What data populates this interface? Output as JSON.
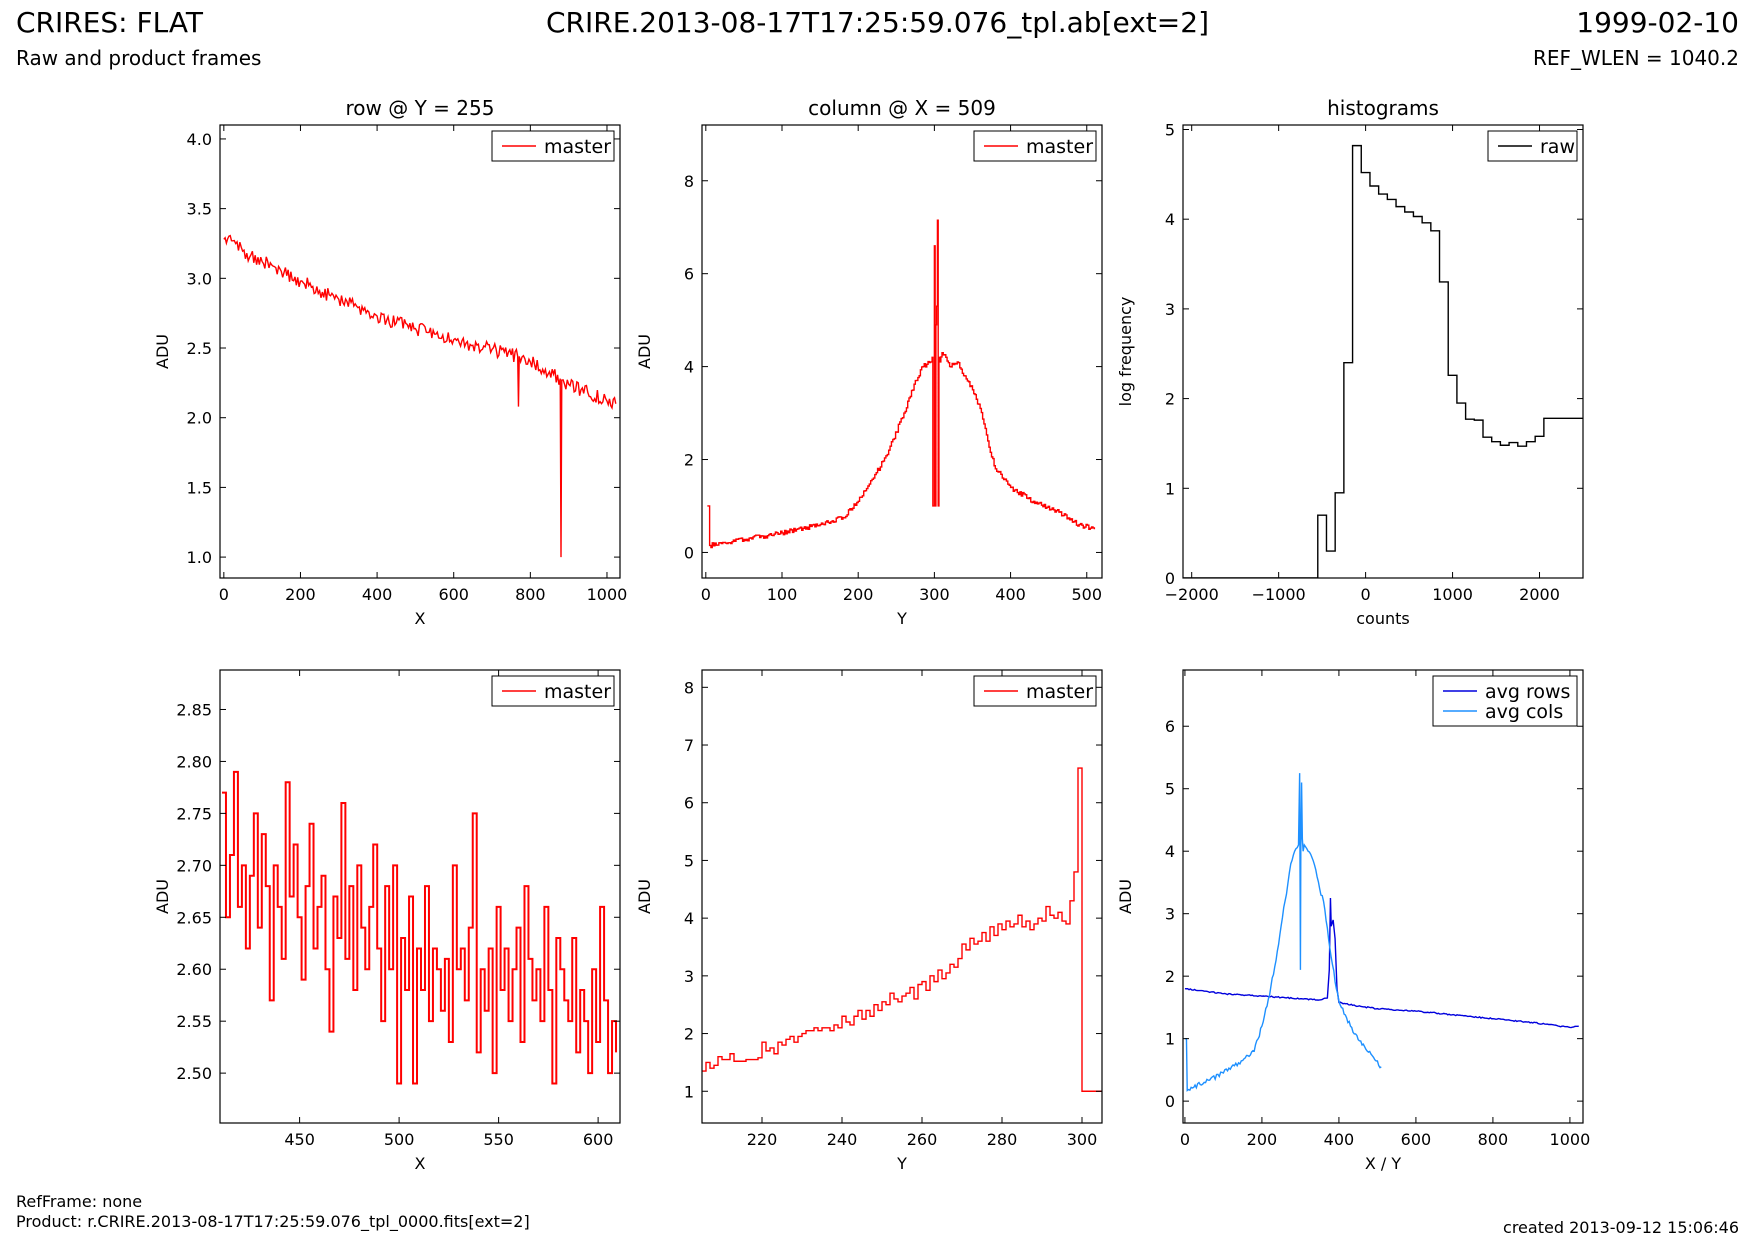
{
  "header": {
    "title_left": "CRIRES: FLAT",
    "subtitle_left": "Raw and product frames",
    "title_center": "CRIRE.2013-08-17T17:25:59.076_tpl.ab[ext=2]",
    "title_right": "1999-02-10",
    "subtitle_right": "REF_WLEN = 1040.2"
  },
  "footer": {
    "refframe": "RefFrame: none",
    "product": "Product: r.CRIRE.2013-08-17T17:25:59.076_tpl_0000.fits[ext=2]",
    "created": "created 2013-09-12 15:06:46"
  },
  "colors": {
    "master": "#ff0000",
    "raw": "#000000",
    "avg_rows": "#0000dd",
    "avg_cols": "#1e90ff"
  },
  "chart_data": [
    {
      "type": "line",
      "title": "row @ Y = 255",
      "xlabel": "X",
      "ylabel": "ADU",
      "xlim": [
        -10,
        1034
      ],
      "ylim": [
        0.85,
        4.1
      ],
      "xticks": [
        0,
        200,
        400,
        600,
        800,
        1000
      ],
      "yticks": [
        1.0,
        1.5,
        2.0,
        2.5,
        3.0,
        3.5,
        4.0
      ],
      "tick_decimals": 1,
      "legend": "top-right",
      "series": [
        {
          "name": "master",
          "color": "#ff0000",
          "step": false,
          "x": [
            0,
            20,
            60,
            100,
            150,
            200,
            250,
            300,
            350,
            400,
            450,
            500,
            550,
            600,
            650,
            700,
            750,
            767,
            769,
            771,
            800,
            850,
            878,
            880,
            882,
            900,
            950,
            1000,
            1023
          ],
          "y": [
            3.28,
            3.27,
            3.18,
            3.12,
            3.05,
            2.98,
            2.91,
            2.85,
            2.79,
            2.73,
            2.68,
            2.64,
            2.6,
            2.56,
            2.52,
            2.49,
            2.45,
            2.44,
            2.08,
            2.44,
            2.4,
            2.33,
            2.28,
            1.0,
            2.27,
            2.24,
            2.18,
            2.12,
            2.1
          ],
          "noise": 0.05
        }
      ]
    },
    {
      "type": "line",
      "title": "column @ X = 509",
      "xlabel": "Y",
      "ylabel": "ADU",
      "xlim": [
        -5,
        520
      ],
      "ylim": [
        -0.55,
        9.2
      ],
      "xticks": [
        0,
        100,
        200,
        300,
        400,
        500
      ],
      "yticks": [
        0,
        2,
        4,
        6,
        8
      ],
      "tick_decimals": 0,
      "legend": "top-right",
      "series": [
        {
          "name": "master",
          "color": "#ff0000",
          "step": true,
          "x": [
            2,
            4,
            5,
            50,
            100,
            150,
            180,
            200,
            220,
            240,
            260,
            275,
            285,
            290,
            295,
            297,
            298,
            300,
            301,
            302,
            303,
            304,
            305,
            306,
            307,
            310,
            315,
            320,
            330,
            340,
            350,
            360,
            370,
            380,
            400,
            430,
            460,
            490,
            510
          ],
          "y": [
            1.0,
            1.0,
            0.15,
            0.28,
            0.42,
            0.6,
            0.75,
            1.1,
            1.6,
            2.2,
            3.0,
            3.7,
            4.0,
            4.05,
            4.1,
            4.2,
            1.0,
            6.6,
            1.0,
            4.9,
            5.3,
            7.15,
            1.0,
            4.2,
            4.1,
            4.3,
            4.2,
            4.0,
            4.1,
            3.8,
            3.5,
            3.1,
            2.4,
            1.8,
            1.4,
            1.1,
            0.9,
            0.6,
            0.5
          ],
          "noise": 0.05
        }
      ]
    },
    {
      "type": "line",
      "title": "histograms",
      "xlabel": "counts",
      "ylabel": "log frequency",
      "xlim": [
        -2100,
        2500
      ],
      "ylim": [
        0,
        5.05
      ],
      "xticks": [
        -2000,
        -1000,
        0,
        1000,
        2000
      ],
      "yticks": [
        0,
        1,
        2,
        3,
        4,
        5
      ],
      "tick_decimals": 0,
      "legend": "top-right",
      "series": [
        {
          "name": "raw",
          "color": "#000000",
          "step": true,
          "x": [
            -2100,
            -550,
            -550,
            -450,
            -350,
            -250,
            -150,
            -50,
            50,
            150,
            250,
            350,
            450,
            550,
            650,
            750,
            850,
            950,
            1050,
            1150,
            1250,
            1350,
            1450,
            1550,
            1650,
            1750,
            1850,
            1950,
            2050,
            2150,
            2250,
            2350,
            2450,
            2500
          ],
          "y": [
            0,
            0,
            0.7,
            0.3,
            0.95,
            2.4,
            4.82,
            4.52,
            4.37,
            4.28,
            4.22,
            4.14,
            4.08,
            4.03,
            3.96,
            3.87,
            3.3,
            2.26,
            1.95,
            1.77,
            1.76,
            1.57,
            1.52,
            1.48,
            1.51,
            1.47,
            1.52,
            1.58,
            1.78,
            1.78,
            1.78,
            1.78,
            1.78,
            1.78
          ],
          "noise": 0
        }
      ]
    },
    {
      "type": "line",
      "title": "",
      "xlabel": "X",
      "ylabel": "ADU",
      "xlim": [
        410,
        611
      ],
      "ylim": [
        2.452,
        2.888
      ],
      "xticks": [
        450,
        500,
        550,
        600
      ],
      "yticks": [
        2.5,
        2.55,
        2.6,
        2.65,
        2.7,
        2.75,
        2.8,
        2.85
      ],
      "tick_decimals": 2,
      "legend": "top-right",
      "series": [
        {
          "name": "master",
          "color": "#ff0000",
          "step": true,
          "x": [
            411,
            413,
            415,
            417,
            419,
            421,
            423,
            425,
            427,
            429,
            431,
            433,
            435,
            437,
            439,
            441,
            443,
            445,
            447,
            449,
            451,
            453,
            455,
            457,
            459,
            461,
            463,
            465,
            467,
            469,
            471,
            473,
            475,
            477,
            479,
            481,
            483,
            485,
            487,
            489,
            491,
            493,
            495,
            497,
            499,
            501,
            503,
            505,
            507,
            509,
            511,
            513,
            515,
            517,
            519,
            521,
            523,
            525,
            527,
            529,
            531,
            533,
            535,
            537,
            539,
            541,
            543,
            545,
            547,
            549,
            551,
            553,
            555,
            557,
            559,
            561,
            563,
            565,
            567,
            569,
            571,
            573,
            575,
            577,
            579,
            581,
            583,
            585,
            587,
            589,
            591,
            593,
            595,
            597,
            599,
            601,
            603,
            605,
            607,
            609
          ],
          "y": [
            2.77,
            2.65,
            2.71,
            2.79,
            2.66,
            2.7,
            2.62,
            2.69,
            2.75,
            2.64,
            2.73,
            2.68,
            2.57,
            2.7,
            2.66,
            2.61,
            2.78,
            2.67,
            2.72,
            2.65,
            2.59,
            2.68,
            2.74,
            2.62,
            2.66,
            2.69,
            2.6,
            2.54,
            2.67,
            2.63,
            2.76,
            2.61,
            2.68,
            2.58,
            2.7,
            2.64,
            2.6,
            2.66,
            2.72,
            2.62,
            2.55,
            2.68,
            2.6,
            2.7,
            2.49,
            2.63,
            2.58,
            2.67,
            2.49,
            2.62,
            2.58,
            2.68,
            2.55,
            2.62,
            2.6,
            2.56,
            2.61,
            2.53,
            2.7,
            2.6,
            2.62,
            2.57,
            2.64,
            2.75,
            2.52,
            2.6,
            2.56,
            2.62,
            2.5,
            2.66,
            2.58,
            2.62,
            2.55,
            2.6,
            2.64,
            2.53,
            2.68,
            2.61,
            2.57,
            2.6,
            2.55,
            2.66,
            2.58,
            2.49,
            2.63,
            2.6,
            2.57,
            2.55,
            2.63,
            2.52,
            2.58,
            2.55,
            2.5,
            2.6,
            2.53,
            2.66,
            2.57,
            2.5,
            2.55,
            2.52
          ],
          "noise": 0
        }
      ]
    },
    {
      "type": "line",
      "title": "",
      "xlabel": "Y",
      "ylabel": "ADU",
      "xlim": [
        205,
        305
      ],
      "ylim": [
        0.45,
        8.3
      ],
      "xticks": [
        220,
        240,
        260,
        280,
        300
      ],
      "yticks": [
        1,
        2,
        3,
        4,
        5,
        6,
        7,
        8
      ],
      "tick_decimals": 0,
      "legend": "top-right",
      "series": [
        {
          "name": "master",
          "color": "#ff0000",
          "step": true,
          "x": [
            205,
            206,
            207,
            208,
            209,
            210,
            211,
            212,
            213,
            214,
            215,
            216,
            217,
            218,
            219,
            220,
            221,
            222,
            223,
            224,
            225,
            226,
            227,
            228,
            229,
            230,
            231,
            232,
            233,
            234,
            235,
            236,
            237,
            238,
            239,
            240,
            241,
            242,
            243,
            244,
            245,
            246,
            247,
            248,
            249,
            250,
            251,
            252,
            253,
            254,
            255,
            256,
            257,
            258,
            259,
            260,
            261,
            262,
            263,
            264,
            265,
            266,
            267,
            268,
            269,
            270,
            271,
            272,
            273,
            274,
            275,
            276,
            277,
            278,
            279,
            280,
            281,
            282,
            283,
            284,
            285,
            286,
            287,
            288,
            289,
            290,
            291,
            292,
            293,
            294,
            295,
            296,
            297,
            298,
            299,
            300,
            301,
            305
          ],
          "y": [
            1.35,
            1.5,
            1.4,
            1.45,
            1.6,
            1.55,
            1.55,
            1.65,
            1.52,
            1.52,
            1.52,
            1.55,
            1.55,
            1.55,
            1.58,
            1.85,
            1.7,
            1.75,
            1.65,
            1.85,
            1.8,
            1.9,
            1.95,
            1.85,
            1.95,
            2.0,
            2.05,
            2.05,
            2.1,
            2.05,
            2.1,
            2.1,
            2.05,
            2.15,
            2.1,
            2.3,
            2.2,
            2.15,
            2.3,
            2.4,
            2.25,
            2.4,
            2.3,
            2.5,
            2.4,
            2.55,
            2.5,
            2.7,
            2.6,
            2.55,
            2.65,
            2.7,
            2.8,
            2.6,
            2.85,
            2.9,
            2.75,
            3.0,
            2.9,
            3.1,
            2.95,
            3.05,
            3.2,
            3.15,
            3.3,
            3.55,
            3.45,
            3.65,
            3.55,
            3.6,
            3.75,
            3.6,
            3.85,
            3.7,
            3.9,
            3.8,
            3.95,
            3.85,
            3.9,
            4.05,
            3.85,
            3.95,
            3.8,
            3.9,
            4.0,
            3.95,
            4.2,
            4.05,
            4.0,
            4.1,
            3.95,
            3.9,
            4.3,
            4.8,
            6.6,
            1.0,
            1.0,
            1.0
          ],
          "noise": 0
        }
      ]
    },
    {
      "type": "line",
      "title": "",
      "xlabel": "X / Y",
      "ylabel": "ADU",
      "xlim": [
        -5,
        1034
      ],
      "ylim": [
        -0.35,
        6.9
      ],
      "xticks": [
        0,
        200,
        400,
        600,
        800,
        1000
      ],
      "yticks": [
        0,
        1,
        2,
        3,
        4,
        5,
        6
      ],
      "tick_decimals": 0,
      "legend": "top-right",
      "series": [
        {
          "name": "avg rows",
          "color": "#0000dd",
          "step": false,
          "x": [
            0,
            50,
            100,
            150,
            200,
            250,
            300,
            350,
            370,
            375,
            378,
            380,
            385,
            390,
            395,
            400,
            450,
            500,
            550,
            600,
            700,
            800,
            900,
            1000,
            1023
          ],
          "y": [
            1.8,
            1.76,
            1.72,
            1.7,
            1.68,
            1.66,
            1.64,
            1.62,
            1.65,
            2.1,
            3.25,
            2.8,
            2.9,
            2.6,
            1.8,
            1.58,
            1.52,
            1.48,
            1.46,
            1.44,
            1.38,
            1.32,
            1.26,
            1.18,
            1.2
          ],
          "noise": 0.01
        },
        {
          "name": "avg cols",
          "color": "#1e90ff",
          "step": false,
          "x": [
            0,
            4,
            6,
            50,
            100,
            150,
            180,
            200,
            220,
            240,
            260,
            275,
            285,
            295,
            298,
            300,
            301,
            303,
            305,
            307,
            310,
            320,
            330,
            340,
            350,
            360,
            380,
            400,
            430,
            460,
            490,
            510
          ],
          "y": [
            1.0,
            1.0,
            0.17,
            0.3,
            0.45,
            0.65,
            0.8,
            1.2,
            1.7,
            2.4,
            3.2,
            3.8,
            4.0,
            4.1,
            5.25,
            2.1,
            4.0,
            5.1,
            4.2,
            4.0,
            4.1,
            4.0,
            3.9,
            3.7,
            3.4,
            3.2,
            2.3,
            1.6,
            1.2,
            0.9,
            0.7,
            0.55
          ],
          "noise": 0.04
        }
      ]
    }
  ]
}
